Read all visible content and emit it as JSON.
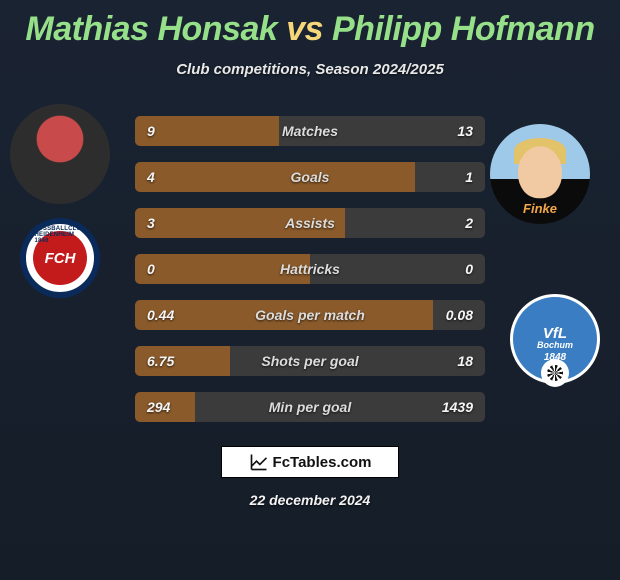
{
  "title": {
    "player1": "Mathias Honsak",
    "vs": "vs",
    "player2": "Philipp Hofmann"
  },
  "subtitle": "Club competitions, Season 2024/2025",
  "stats": [
    {
      "label": "Matches",
      "v1": "9",
      "v2": "13",
      "left_pct": 41,
      "right_pct": 59
    },
    {
      "label": "Goals",
      "v1": "4",
      "v2": "1",
      "left_pct": 80,
      "right_pct": 20
    },
    {
      "label": "Assists",
      "v1": "3",
      "v2": "2",
      "left_pct": 60,
      "right_pct": 40
    },
    {
      "label": "Hattricks",
      "v1": "0",
      "v2": "0",
      "left_pct": 50,
      "right_pct": 50
    },
    {
      "label": "Goals per match",
      "v1": "0.44",
      "v2": "0.08",
      "left_pct": 85,
      "right_pct": 15
    },
    {
      "label": "Shots per goal",
      "v1": "6.75",
      "v2": "18",
      "left_pct": 27,
      "right_pct": 73
    },
    {
      "label": "Min per goal",
      "v1": "294",
      "v2": "1439",
      "left_pct": 17,
      "right_pct": 83
    }
  ],
  "colors": {
    "bar_left": "#8a5a2a",
    "bar_right": "#3b3b3b",
    "title_player": "#97e08a",
    "title_vs": "#f5d77a"
  },
  "brand": "FcTables.com",
  "date": "22 december 2024",
  "club_left": {
    "inner": "FCH",
    "ring": "FUSSBALLCLUB HEIDENHEIM 1846"
  },
  "club_right": {
    "vfl": "VfL",
    "city": "Bochum",
    "year": "1848"
  },
  "avatar_right_sponsor": "Finke"
}
